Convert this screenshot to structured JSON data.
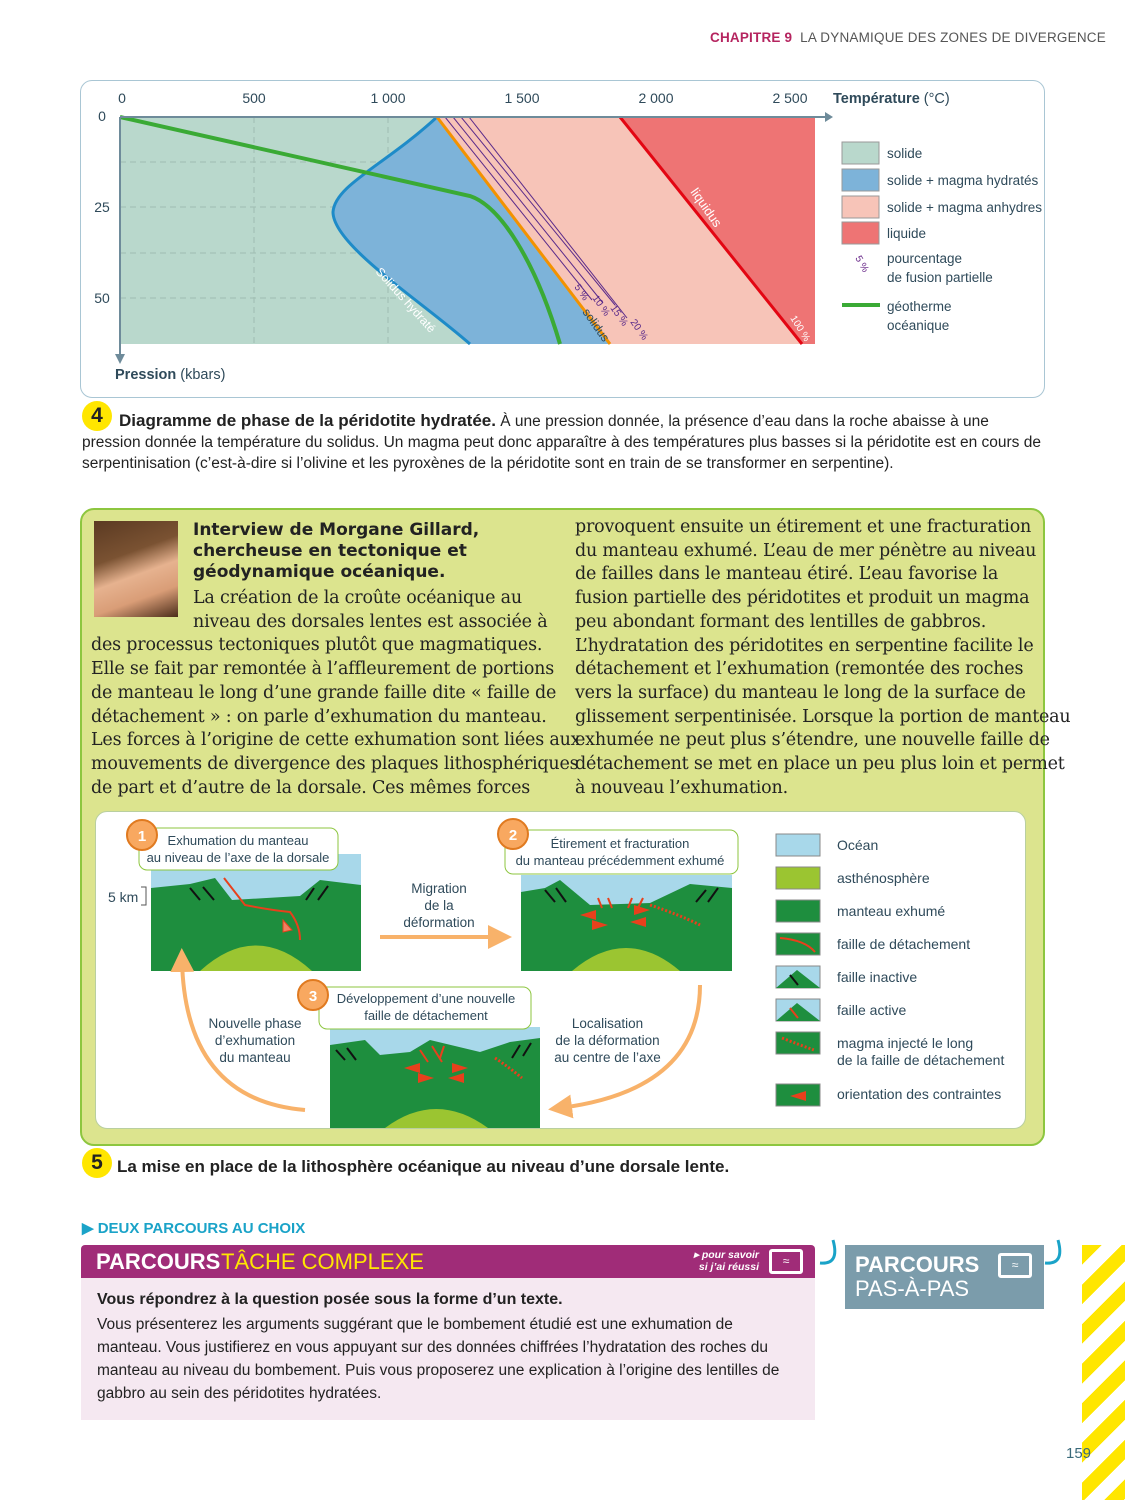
{
  "header": {
    "chapter": "CHAPITRE 9",
    "title": "LA DYNAMIQUE DES ZONES DE DIVERGENCE"
  },
  "doc4": {
    "number": "4",
    "chart_data": {
      "type": "area",
      "xlabel_bold": "Température",
      "xlabel_unit": "(°C)",
      "ylabel_bold": "Pression",
      "ylabel_unit": "(kbars)",
      "x_ticks": [
        "0",
        "500",
        "1 000",
        "1 500",
        "2 000",
        "2 500"
      ],
      "y_ticks": [
        "0",
        "25",
        "50"
      ],
      "xlim": [
        0,
        2600
      ],
      "ylim": [
        0,
        62
      ],
      "curves": {
        "solidus_label": "solidus",
        "solidus_hydrate_label": "Solidus hydraté",
        "liquidus_label": "liquidus",
        "liquidus_pct": "100 %",
        "fusion_pct": [
          "5 %",
          "10 %",
          "15 %",
          "20 %"
        ]
      },
      "legend": [
        {
          "label": "solide",
          "color": "#b9d8cc"
        },
        {
          "label": "solide + magma hydratés",
          "color": "#7db3d9"
        },
        {
          "label": "solide + magma anhydres",
          "color": "#f7c4b8"
        },
        {
          "label": "liquide",
          "color": "#ee7474"
        },
        {
          "label": "pourcentage de fusion partielle",
          "line1": "pourcentage",
          "line2": "de fusion partielle",
          "symbol": "5 %",
          "color": "#6a2a8a"
        },
        {
          "label": "géotherme océanique",
          "line1": "géotherme",
          "line2": "océanique",
          "color": "#3aaa35"
        }
      ],
      "legend_position": "right"
    },
    "caption_title": "Diagramme de phase de la péridotite hydratée.",
    "caption_text": " À une pression donnée, la présence d’eau dans la roche abaisse à une pression donnée la température du solidus. Un magma peut donc apparaître à des températures plus basses si la péridotite est en cours de serpentinisation (c’est-à-dire si l’olivine et les pyroxènes de la péridotite sont en train de se transformer en serpentine)."
  },
  "interview": {
    "title_lines": [
      "Interview de Morgane Gillard,",
      "chercheuse en tectonique et",
      "géodynamique océanique."
    ],
    "left_lines": [
      "La création de la croûte océanique au",
      "niveau des dorsales lentes est associée à",
      "des processus tectoniques plutôt que magmatiques.",
      "Elle se fait par remontée à l’affleurement de portions",
      "de manteau le long d’une grande faille dite « faille de",
      "détachement » : on parle d’exhumation du manteau.",
      "Les forces à l’origine de cette exhumation sont liées aux",
      "mouvements de divergence des plaques lithosphériques",
      "de part et d’autre de la dorsale. Ces mêmes forces"
    ],
    "right_lines": [
      "provoquent ensuite un étirement et une fracturation",
      "du manteau exhumé. L’eau de mer pénètre au niveau",
      "de failles dans le manteau étiré. L’eau favorise la",
      "fusion partielle des péridotites et produit un magma",
      "peu abondant formant des lentilles de gabbros.",
      "L’hydratation des péridotites en serpentine facilite le",
      "détachement et l’exhumation (remontée des roches",
      "vers la surface) du manteau le long de la surface de",
      "glissement serpentinisée. Lorsque la portion de manteau",
      "exhumée ne peut plus s’étendre, une nouvelle faille de",
      "détachement se met en place un peu plus loin et permet",
      "à nouveau l’exhumation."
    ]
  },
  "doc5": {
    "number": "5",
    "steps": [
      {
        "num": "1",
        "line1": "Exhumation du manteau",
        "line2": "au niveau de l’axe de la dorsale"
      },
      {
        "num": "2",
        "line1": "Étirement et fracturation",
        "line2": "du manteau précédemment exhumé"
      },
      {
        "num": "3",
        "line1": "Développement d’une nouvelle",
        "line2": "faille de détachement"
      }
    ],
    "scale": "5 km",
    "arrows": {
      "a1": [
        "Migration",
        "de la",
        "déformation"
      ],
      "a2": [
        "Localisation",
        "de la déformation",
        "au centre de l’axe"
      ],
      "a3": [
        "Nouvelle phase",
        "d’exhumation",
        "du manteau"
      ]
    },
    "legend": [
      {
        "label": "Océan",
        "color": "#a8d8ea"
      },
      {
        "label": "asthénosphère",
        "color": "#9bc531"
      },
      {
        "label": "manteau exhumé",
        "color": "#1e8e3e"
      },
      {
        "label": "faille de détachement"
      },
      {
        "label": "faille inactive"
      },
      {
        "label": "faille active"
      },
      {
        "label": "magma injecté le long de la faille de détachement",
        "line1": "magma injecté le long",
        "line2": "de la faille de détachement"
      },
      {
        "label": "orientation des contraintes"
      }
    ],
    "caption": "La mise en place de la lithosphère océanique au niveau d’une dorsale lente."
  },
  "parcours": {
    "heading": "DEUX PARCOURS AU CHOIX",
    "complexe_bold": "PARCOURS",
    "complexe_light": "TÂCHE COMPLEXE",
    "check_line1": "pour savoir",
    "check_line2": "si j’ai réussi",
    "question": "Vous répondrez à la question posée sous la forme d’un texte.",
    "body": "Vous présenterez les arguments suggérant que le bombement étudié est une exhumation de manteau. Vous justifierez en vous appuyant sur des données chiffrées l’hydratation des roches du manteau au niveau du bombement. Puis vous proposerez une explication à l’origine des lentilles de gabbro au sein des péridotites hydratées.",
    "pas_line1": "PARCOURS",
    "pas_line2": "PAS-À-PAS",
    "icon": "laptop-wifi-icon"
  },
  "page_number": "159"
}
